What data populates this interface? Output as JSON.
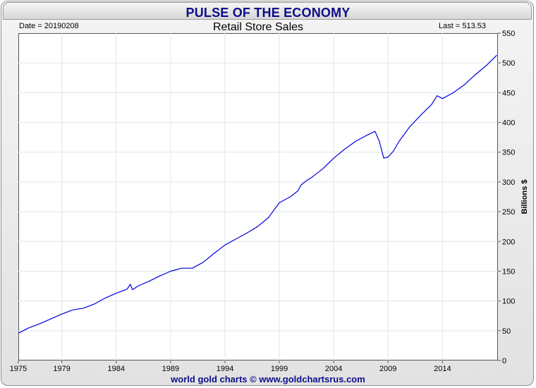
{
  "banner": {
    "title": "PULSE OF THE ECONOMY"
  },
  "header": {
    "date_label": "Date = 20190208",
    "last_label": "Last = 513.53"
  },
  "footer": {
    "credit": "world gold charts © www.goldchartsrus.com"
  },
  "colors": {
    "line": "#0000dd",
    "banner_text": "#0d0d8a",
    "grid": "#dde6ee"
  },
  "chart_data": {
    "type": "line",
    "title": "Retail Store Sales",
    "xlabel": "",
    "ylabel": "Billions $",
    "xlim": [
      1975,
      2019.1
    ],
    "ylim": [
      0,
      550
    ],
    "x_ticks": [
      1975,
      1979,
      1984,
      1989,
      1994,
      1999,
      2004,
      2009,
      2014
    ],
    "y_ticks": [
      0,
      50,
      100,
      150,
      200,
      250,
      300,
      350,
      400,
      450,
      500,
      550
    ],
    "grid": true,
    "y_axis_side": "right",
    "series": [
      {
        "x": [
          1975,
          1976,
          1977,
          1978,
          1979,
          1980,
          1981,
          1982,
          1983,
          1984,
          1985,
          1985.3,
          1985.5,
          1986,
          1987,
          1988,
          1989,
          1990,
          1991,
          1992,
          1993,
          1994,
          1995,
          1996,
          1997,
          1998,
          1999,
          2000,
          2000.7,
          2001,
          2001.5,
          2002,
          2003,
          2004,
          2005,
          2006,
          2007,
          2007.8,
          2008.2,
          2008.6,
          2009,
          2009.5,
          2010,
          2011,
          2012,
          2013,
          2013.5,
          2014,
          2015,
          2016,
          2017,
          2018,
          2019
        ],
        "y": [
          46,
          55,
          62,
          70,
          78,
          85,
          88,
          95,
          105,
          113,
          120,
          128,
          119,
          125,
          133,
          142,
          150,
          155,
          155,
          165,
          180,
          194,
          204,
          214,
          225,
          240,
          265,
          275,
          285,
          295,
          302,
          308,
          322,
          340,
          355,
          368,
          378,
          385,
          368,
          340,
          342,
          352,
          368,
          393,
          412,
          430,
          445,
          440,
          450,
          463,
          480,
          495,
          513
        ]
      }
    ],
    "last_value": 513.53
  }
}
